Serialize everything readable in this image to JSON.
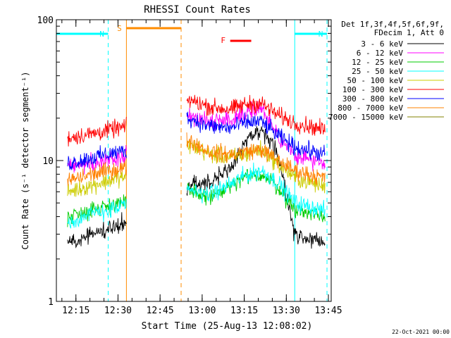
{
  "chart_data": {
    "type": "line",
    "title": "RHESSI Count Rates",
    "xlabel": "Start Time (25-Aug-13 12:08:02)",
    "ylabel": "Count Rate (s⁻¹ detector segment⁻¹)",
    "xlim": [
      "12:08:02",
      "13:46:00"
    ],
    "ylim": [
      1,
      100
    ],
    "yscale": "log",
    "x_ticks": [
      "12:15",
      "12:30",
      "12:45",
      "13:00",
      "13:15",
      "13:30",
      "13:45"
    ],
    "y_ticks": [
      "1",
      "10",
      "100"
    ],
    "grid": false,
    "legend_position": "right",
    "legend_header": [
      "Det 1f,3f,4f,5f,6f,9f,",
      "FDecim 1, Att 0"
    ],
    "footer_date": "22-Oct-2021 00:00",
    "data_gap": [
      "12:33:00",
      "12:54:30"
    ],
    "annotations": [
      {
        "label": "N",
        "kind": "night",
        "from": "12:08:02",
        "to": "12:26:30",
        "color": "#00ffff"
      },
      {
        "label": "N",
        "kind": "night",
        "from": "13:33:00",
        "to": "13:44:30",
        "color": "#00ffff"
      },
      {
        "label": "S",
        "kind": "saa",
        "from": "12:33:00",
        "to": "12:52:30",
        "color": "#ff8c00"
      },
      {
        "label": "F",
        "kind": "flare",
        "from": "13:10:00",
        "to": "13:17:30",
        "color": "#ff0000"
      }
    ],
    "series": [
      {
        "name": "3 - 6 keV",
        "color": "#000000",
        "values": [
          [
            12.2,
            2.6
          ],
          [
            12.35,
            3.0
          ],
          [
            12.5,
            3.5
          ],
          [
            12.58,
            3.8
          ],
          [
            12.92,
            6.5
          ],
          [
            13.05,
            7.2
          ],
          [
            13.17,
            8.8
          ],
          [
            13.25,
            13.0
          ],
          [
            13.35,
            16.5
          ],
          [
            13.45,
            11.0
          ],
          [
            13.55,
            3.0
          ],
          [
            13.73,
            2.6
          ]
        ]
      },
      {
        "name": "6 - 12 keV",
        "color": "#ff00ff",
        "values": [
          [
            12.2,
            9.0
          ],
          [
            12.35,
            9.5
          ],
          [
            12.5,
            10.5
          ],
          [
            12.58,
            11.5
          ],
          [
            12.92,
            21.0
          ],
          [
            13.05,
            19.0
          ],
          [
            13.17,
            19.5
          ],
          [
            13.25,
            22.0
          ],
          [
            13.35,
            24.0
          ],
          [
            13.45,
            14.5
          ],
          [
            13.55,
            11.0
          ],
          [
            13.73,
            9.5
          ]
        ]
      },
      {
        "name": "12 - 25 keV",
        "color": "#00cc00",
        "values": [
          [
            12.2,
            4.0
          ],
          [
            12.35,
            4.5
          ],
          [
            12.5,
            5.0
          ],
          [
            12.58,
            5.2
          ],
          [
            12.92,
            6.0
          ],
          [
            13.05,
            5.5
          ],
          [
            13.17,
            6.5
          ],
          [
            13.25,
            7.5
          ],
          [
            13.35,
            8.0
          ],
          [
            13.45,
            6.5
          ],
          [
            13.55,
            4.5
          ],
          [
            13.73,
            4.0
          ]
        ]
      },
      {
        "name": "25 - 50 keV",
        "color": "#00ffff",
        "values": [
          [
            12.2,
            3.6
          ],
          [
            12.35,
            4.2
          ],
          [
            12.5,
            4.6
          ],
          [
            12.58,
            5.0
          ],
          [
            12.92,
            6.2
          ],
          [
            13.05,
            5.8
          ],
          [
            13.17,
            6.8
          ],
          [
            13.25,
            7.8
          ],
          [
            13.35,
            8.5
          ],
          [
            13.45,
            7.0
          ],
          [
            13.55,
            5.0
          ],
          [
            13.73,
            4.4
          ]
        ]
      },
      {
        "name": "50 - 100 keV",
        "color": "#cccc00",
        "values": [
          [
            12.2,
            6.0
          ],
          [
            12.35,
            6.7
          ],
          [
            12.5,
            7.5
          ],
          [
            12.58,
            7.8
          ],
          [
            12.92,
            13.0
          ],
          [
            13.05,
            11.0
          ],
          [
            13.17,
            10.5
          ],
          [
            13.25,
            11.0
          ],
          [
            13.35,
            12.0
          ],
          [
            13.45,
            9.5
          ],
          [
            13.55,
            7.5
          ],
          [
            13.73,
            6.5
          ]
        ]
      },
      {
        "name": "100 - 300 keV",
        "color": "#ff0000",
        "values": [
          [
            12.2,
            14.5
          ],
          [
            12.35,
            15.5
          ],
          [
            12.5,
            17.0
          ],
          [
            12.58,
            17.5
          ],
          [
            12.92,
            27.0
          ],
          [
            13.05,
            24.0
          ],
          [
            13.17,
            23.0
          ],
          [
            13.25,
            25.0
          ],
          [
            13.35,
            25.5
          ],
          [
            13.45,
            21.0
          ],
          [
            13.55,
            18.5
          ],
          [
            13.73,
            16.5
          ]
        ]
      },
      {
        "name": "300 - 800 keV",
        "color": "#0000ff",
        "values": [
          [
            12.2,
            9.5
          ],
          [
            12.35,
            10.5
          ],
          [
            12.5,
            11.5
          ],
          [
            12.58,
            12.0
          ],
          [
            12.92,
            20.0
          ],
          [
            13.05,
            17.5
          ],
          [
            13.17,
            17.0
          ],
          [
            13.25,
            18.5
          ],
          [
            13.35,
            19.0
          ],
          [
            13.45,
            15.0
          ],
          [
            13.55,
            12.5
          ],
          [
            13.73,
            11.0
          ]
        ]
      },
      {
        "name": "800 - 7000 keV",
        "color": "#ff8000",
        "values": [
          [
            12.2,
            7.2
          ],
          [
            12.35,
            8.0
          ],
          [
            12.5,
            8.7
          ],
          [
            12.58,
            9.0
          ],
          [
            12.92,
            14.0
          ],
          [
            13.05,
            11.5
          ],
          [
            13.17,
            11.0
          ],
          [
            13.25,
            11.5
          ],
          [
            13.35,
            12.0
          ],
          [
            13.45,
            10.0
          ],
          [
            13.55,
            8.5
          ],
          [
            13.73,
            7.5
          ]
        ]
      },
      {
        "name": "7000 - 15000 keV",
        "color": "#808000",
        "values": []
      }
    ]
  }
}
